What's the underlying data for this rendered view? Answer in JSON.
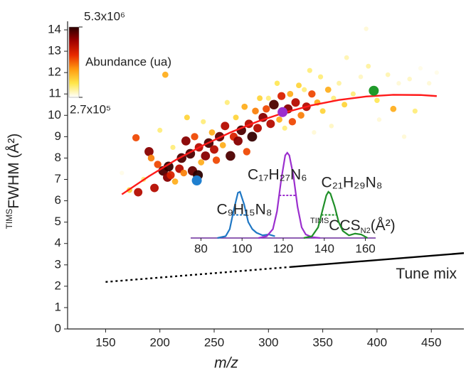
{
  "chart_data": [
    {
      "type": "scatter",
      "x_label": "m/z",
      "y_label_prefix": "TIMS",
      "y_label": "FWHM (Å²)",
      "xlim": [
        115,
        480
      ],
      "ylim": [
        0,
        14.4
      ],
      "xticks": [
        150,
        200,
        250,
        300,
        350,
        400,
        450
      ],
      "yticks": [
        0,
        1,
        2,
        3,
        4,
        5,
        6,
        7,
        8,
        9,
        10,
        11,
        12,
        13,
        14
      ],
      "colorbar": {
        "label": "Abundance (ua)",
        "lim": [
          270000,
          5300000
        ],
        "ticks": [
          {
            "value": 5300000,
            "label": "5.3x10⁶"
          },
          {
            "value": 270000,
            "label": "2.7x10⁵"
          }
        ],
        "colors": [
          "#ffffff",
          "#ffe64a",
          "#ff9a10",
          "#e82a00",
          "#a00000",
          "#2a0000"
        ]
      },
      "series": [
        {
          "type": "scatter",
          "x": [
            165,
            172,
            178,
            180,
            185,
            190,
            192,
            195,
            198,
            200,
            203,
            205,
            207,
            208,
            210,
            212,
            214,
            218,
            220,
            222,
            224,
            225,
            228,
            230,
            232,
            235,
            236,
            238,
            240,
            242,
            245,
            248,
            250,
            252,
            255,
            258,
            260,
            262,
            265,
            268,
            270,
            272,
            275,
            278,
            280,
            282,
            285,
            288,
            290,
            292,
            295,
            298,
            300,
            302,
            305,
            308,
            310,
            312,
            315,
            318,
            320,
            322,
            325,
            328,
            330,
            333,
            335,
            338,
            340,
            342,
            345,
            348,
            350,
            355,
            358,
            360,
            365,
            370,
            372,
            378,
            385,
            390,
            392,
            400,
            402,
            410,
            415,
            420,
            425,
            430,
            435,
            440,
            448,
            455
          ],
          "values": [
            7.3,
            6.5,
            8.95,
            6.4,
            7.0,
            8.3,
            8.0,
            6.6,
            7.7,
            9.3,
            7.4,
            11.9,
            7.1,
            7.6,
            7.2,
            8.5,
            6.9,
            7.5,
            8.0,
            7.3,
            8.8,
            9.9,
            8.2,
            7.4,
            9.0,
            7.2,
            8.5,
            7.8,
            9.7,
            8.1,
            8.7,
            9.2,
            8.4,
            7.9,
            9.0,
            8.6,
            9.5,
            10.6,
            8.1,
            9.0,
            9.9,
            8.8,
            9.3,
            10.4,
            8.3,
            9.6,
            9.0,
            10.2,
            9.4,
            10.8,
            9.9,
            10.3,
            10.8,
            9.6,
            10.5,
            11.5,
            9.8,
            10.9,
            9.4,
            10.3,
            11.0,
            9.7,
            10.6,
            11.4,
            10.0,
            11.2,
            10.4,
            12.1,
            11.0,
            9.2,
            10.6,
            11.8,
            10.2,
            11.2,
            9.5,
            10.8,
            11.5,
            10.5,
            12.7,
            11.0,
            11.8,
            14.05,
            12.3,
            10.7,
            9.8,
            11.9,
            10.3,
            11.5,
            9.0,
            11.7,
            10.2,
            12.2,
            11.5,
            12.0
          ],
          "abundance": [
            400000,
            1500000,
            3000000,
            4000000,
            1000000,
            4500000,
            2500000,
            4000000,
            3000000,
            1000000,
            5000000,
            2000000,
            4500000,
            5200000,
            3500000,
            1000000,
            2000000,
            4000000,
            5000000,
            2500000,
            4500000,
            1500000,
            5000000,
            4800000,
            3000000,
            5300000,
            4000000,
            2000000,
            1000000,
            4500000,
            5000000,
            2000000,
            4000000,
            3000000,
            4800000,
            2000000,
            4000000,
            1000000,
            5000000,
            3500000,
            1500000,
            4500000,
            5000000,
            2000000,
            3000000,
            4000000,
            5200000,
            2500000,
            4000000,
            1500000,
            4500000,
            3000000,
            1000000,
            4000000,
            5000000,
            1200000,
            2000000,
            3500000,
            1000000,
            4500000,
            2000000,
            3000000,
            4000000,
            1500000,
            2500000,
            1000000,
            4000000,
            1000000,
            3000000,
            500000,
            2000000,
            1000000,
            1500000,
            2000000,
            600000,
            1000000,
            800000,
            1500000,
            700000,
            1000000,
            600000,
            500000,
            800000,
            1200000,
            500000,
            700000,
            2000000,
            500000,
            500000,
            600000,
            1000000,
            400000,
            500000,
            400000
          ]
        },
        {
          "type": "line",
          "color": "#ff1a1a",
          "x": [
            165,
            190,
            215,
            240,
            265,
            290,
            315,
            340,
            365,
            390,
            415,
            440,
            455
          ],
          "values": [
            6.3,
            7.15,
            7.92,
            8.6,
            9.2,
            9.71,
            10.13,
            10.47,
            10.72,
            10.88,
            10.96,
            10.95,
            10.9
          ]
        },
        {
          "type": "line",
          "color": "#000000",
          "dash": true,
          "x": [
            150,
            320
          ],
          "values": [
            2.2,
            2.9
          ]
        },
        {
          "type": "line",
          "color": "#000000",
          "name": "Tune mix",
          "x": [
            320,
            480
          ],
          "values": [
            2.9,
            3.55
          ]
        },
        {
          "type": "points",
          "colors": [
            "#1f7fcf",
            "#9b2fce",
            "#1f9a2a"
          ],
          "x": [
            234,
            313,
            397
          ],
          "values": [
            6.95,
            10.15,
            11.15
          ]
        }
      ]
    },
    {
      "type": "line",
      "x_label_prefix": "TIMS",
      "x_label": "CCS",
      "x_label_sub": "N2",
      "x_label_suffix": "(Å²)",
      "xlim": [
        75,
        165
      ],
      "ylim": [
        0,
        1
      ],
      "xticks": [
        80,
        100,
        120,
        140,
        160
      ],
      "series": [
        {
          "name": "C₉H₁₅N₈",
          "color": "#1f77c4",
          "x": [
            88,
            92,
            94,
            96,
            98,
            99,
            101,
            103,
            105,
            107,
            110,
            113,
            116
          ],
          "values": [
            0,
            0.02,
            0.1,
            0.32,
            0.51,
            0.52,
            0.38,
            0.18,
            0.1,
            0.06,
            0.03,
            0.04,
            0.02
          ]
        },
        {
          "name": "C₁₇H₂₇N₆",
          "color": "#9b2fce",
          "x": [
            108,
            112,
            115,
            117,
            119,
            121,
            122,
            123,
            125,
            127,
            129,
            131,
            134,
            138
          ],
          "values": [
            0,
            0.02,
            0.1,
            0.3,
            0.65,
            0.93,
            0.96,
            0.93,
            0.7,
            0.35,
            0.12,
            0.04,
            0.01,
            0
          ]
        },
        {
          "name": "C₂₁H₂₉N₈",
          "color": "#1f8f28",
          "x": [
            130,
            134,
            137,
            139,
            141,
            142,
            143,
            145,
            147,
            149,
            152,
            155,
            158,
            161
          ],
          "values": [
            0,
            0.02,
            0.12,
            0.3,
            0.48,
            0.52,
            0.5,
            0.36,
            0.18,
            0.08,
            0.03,
            0.05,
            0.04,
            0
          ]
        }
      ]
    }
  ]
}
